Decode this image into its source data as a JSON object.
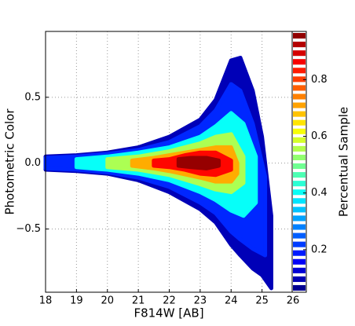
{
  "chart_data": {
    "type": "density",
    "x_label": "F814W [AB]",
    "y_label": "Photometric Color",
    "colorbar_label": "Percentual Sample",
    "xlim": [
      18,
      26
    ],
    "xticks": [
      18,
      19,
      20,
      21,
      22,
      23,
      24,
      25,
      26
    ],
    "ylim": [
      -0.98,
      1.0
    ],
    "yticks": [
      {
        "value": -0.5,
        "label": "−0.5"
      },
      {
        "value": 0,
        "label": "0.0"
      },
      0.5
    ],
    "clim": [
      0.05,
      0.97
    ],
    "cticks": [
      0.2,
      0.4,
      0.6,
      0.8
    ],
    "grid": true,
    "colormap": "jet",
    "levels": [
      {
        "level": 0.1,
        "x": [
          18,
          19,
          20,
          21,
          22,
          23,
          23.5,
          24,
          24.3,
          24.7,
          25,
          25.3
        ],
        "upper": [
          0.05,
          0.06,
          0.08,
          0.12,
          0.2,
          0.33,
          0.48,
          0.78,
          0.8,
          0.55,
          0.2,
          -0.4
        ],
        "lower": [
          -0.05,
          -0.06,
          -0.08,
          -0.13,
          -0.22,
          -0.35,
          -0.45,
          -0.62,
          -0.7,
          -0.8,
          -0.85,
          -0.95
        ]
      },
      {
        "level": 0.2,
        "x": [
          18,
          19,
          20,
          21,
          22,
          23,
          23.5,
          24,
          24.3,
          24.7,
          25.1
        ],
        "upper": [
          0.04,
          0.05,
          0.07,
          0.1,
          0.16,
          0.28,
          0.4,
          0.6,
          0.55,
          0.3,
          -0.1
        ],
        "lower": [
          -0.04,
          -0.05,
          -0.07,
          -0.11,
          -0.18,
          -0.3,
          -0.38,
          -0.52,
          -0.58,
          -0.65,
          -0.7
        ]
      },
      {
        "level": 0.4,
        "x": [
          19,
          20,
          21,
          22,
          23,
          23.5,
          24,
          24.4,
          24.8
        ],
        "upper": [
          0.03,
          0.05,
          0.08,
          0.12,
          0.2,
          0.28,
          0.38,
          0.3,
          0.05
        ],
        "lower": [
          -0.03,
          -0.05,
          -0.08,
          -0.13,
          -0.22,
          -0.28,
          -0.36,
          -0.4,
          -0.3
        ]
      },
      {
        "level": 0.55,
        "x": [
          20,
          21,
          22,
          23,
          23.5,
          24,
          24.4
        ],
        "upper": [
          0.03,
          0.05,
          0.09,
          0.15,
          0.2,
          0.22,
          0.05
        ],
        "lower": [
          -0.03,
          -0.05,
          -0.09,
          -0.16,
          -0.2,
          -0.22,
          -0.15
        ]
      },
      {
        "level": 0.7,
        "x": [
          20.8,
          21.5,
          22,
          23,
          23.5,
          24,
          24.2
        ],
        "upper": [
          0.02,
          0.04,
          0.06,
          0.1,
          0.12,
          0.12,
          0.0
        ],
        "lower": [
          -0.02,
          -0.04,
          -0.06,
          -0.11,
          -0.14,
          -0.14,
          -0.08
        ]
      },
      {
        "level": 0.85,
        "x": [
          21.5,
          22,
          22.5,
          23,
          23.5,
          24
        ],
        "upper": [
          0.02,
          0.03,
          0.06,
          0.08,
          0.08,
          0.02
        ],
        "lower": [
          -0.02,
          -0.03,
          -0.05,
          -0.08,
          -0.09,
          -0.05
        ]
      },
      {
        "level": 0.95,
        "x": [
          22.3,
          22.7,
          23.2,
          23.6
        ],
        "upper": [
          0.03,
          0.04,
          0.04,
          0.02
        ],
        "lower": [
          -0.02,
          -0.03,
          -0.04,
          -0.02
        ]
      }
    ]
  }
}
